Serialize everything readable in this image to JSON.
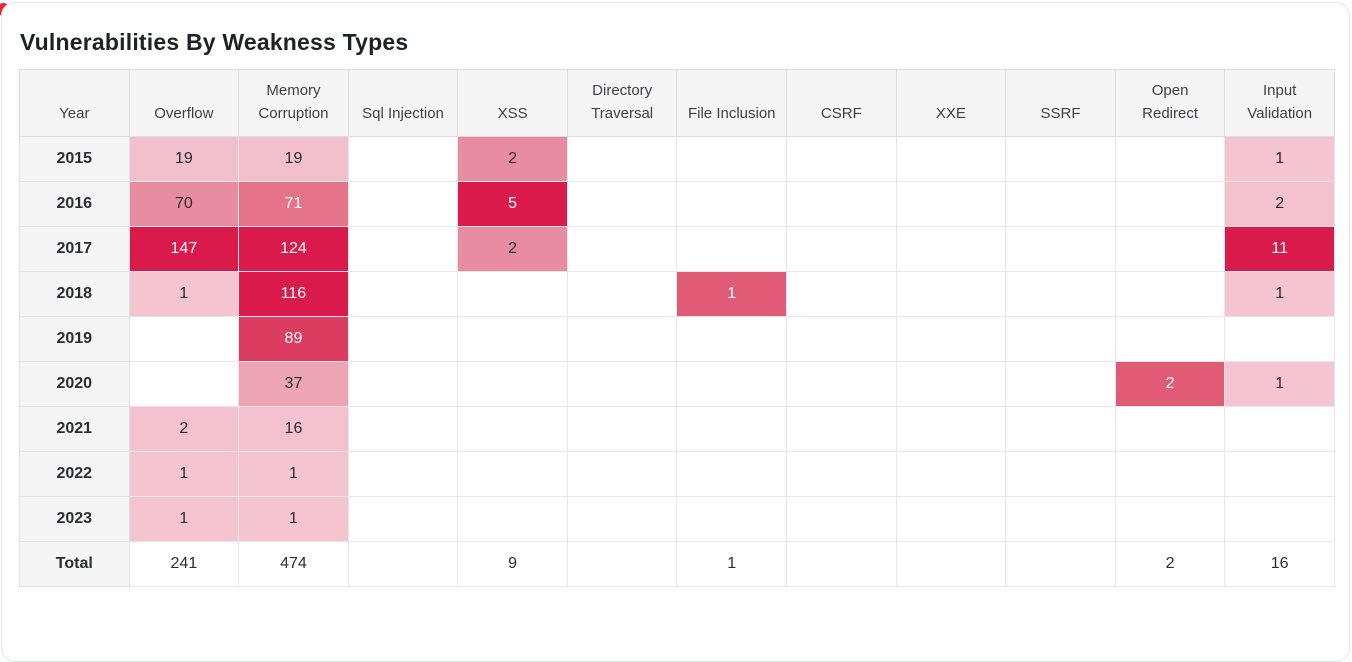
{
  "title": "Vulnerabilities By Weakness Types",
  "colors": {
    "heat_max": "#d91a4a",
    "heat_high": "#dc3c5f",
    "heat_medhigh": "#e5748b",
    "heat_mid": "#e15b76",
    "heat_medium": "#e88da1",
    "heat_medlight": "#eda5b4",
    "heat_light": "#f3c2ce",
    "heat_lightest": "#f4c5d0",
    "year_link": "#4459e6",
    "total_value_text": "#4c2440",
    "header_bg": "#f5f5f6",
    "corner_dot": "#e02d3c"
  },
  "table": {
    "year_header": "Year",
    "columns": [
      "Overflow",
      "Memory Corruption",
      "Sql Injection",
      "XSS",
      "Directory Traversal",
      "File Inclusion",
      "CSRF",
      "XXE",
      "SSRF",
      "Open Redirect",
      "Input Validation"
    ],
    "rows": [
      {
        "year": "2015",
        "cells": [
          {
            "v": "19",
            "bg": "#f2c0cc",
            "fg": "#2b2d31"
          },
          {
            "v": "19",
            "bg": "#f2c0cc",
            "fg": "#2b2d31"
          },
          {
            "v": ""
          },
          {
            "v": "2",
            "bg": "#e88da1",
            "fg": "#2b2d31"
          },
          {
            "v": ""
          },
          {
            "v": ""
          },
          {
            "v": ""
          },
          {
            "v": ""
          },
          {
            "v": ""
          },
          {
            "v": ""
          },
          {
            "v": "1",
            "bg": "#f4c5d0",
            "fg": "#2b2d31"
          }
        ]
      },
      {
        "year": "2016",
        "cells": [
          {
            "v": "70",
            "bg": "#e88da1",
            "fg": "#2b2d31"
          },
          {
            "v": "71",
            "bg": "#e5748b",
            "fg": "#ffffff"
          },
          {
            "v": ""
          },
          {
            "v": "5",
            "bg": "#d91a4a",
            "fg": "#ffffff"
          },
          {
            "v": ""
          },
          {
            "v": ""
          },
          {
            "v": ""
          },
          {
            "v": ""
          },
          {
            "v": ""
          },
          {
            "v": ""
          },
          {
            "v": "2",
            "bg": "#f3c2ce",
            "fg": "#2b2d31"
          }
        ]
      },
      {
        "year": "2017",
        "cells": [
          {
            "v": "147",
            "bg": "#d91a4a",
            "fg": "#ffffff"
          },
          {
            "v": "124",
            "bg": "#d91a4a",
            "fg": "#ffffff"
          },
          {
            "v": ""
          },
          {
            "v": "2",
            "bg": "#e88da1",
            "fg": "#2b2d31"
          },
          {
            "v": ""
          },
          {
            "v": ""
          },
          {
            "v": ""
          },
          {
            "v": ""
          },
          {
            "v": ""
          },
          {
            "v": ""
          },
          {
            "v": "11",
            "bg": "#d91a4a",
            "fg": "#ffffff"
          }
        ]
      },
      {
        "year": "2018",
        "cells": [
          {
            "v": "1",
            "bg": "#f4c5d0",
            "fg": "#2b2d31"
          },
          {
            "v": "116",
            "bg": "#d91a4a",
            "fg": "#ffffff"
          },
          {
            "v": ""
          },
          {
            "v": ""
          },
          {
            "v": ""
          },
          {
            "v": "1",
            "bg": "#e15b76",
            "fg": "#ffffff"
          },
          {
            "v": ""
          },
          {
            "v": ""
          },
          {
            "v": ""
          },
          {
            "v": ""
          },
          {
            "v": "1",
            "bg": "#f4c5d0",
            "fg": "#2b2d31"
          }
        ]
      },
      {
        "year": "2019",
        "cells": [
          {
            "v": ""
          },
          {
            "v": "89",
            "bg": "#dc3c5f",
            "fg": "#ffffff"
          },
          {
            "v": ""
          },
          {
            "v": ""
          },
          {
            "v": ""
          },
          {
            "v": ""
          },
          {
            "v": ""
          },
          {
            "v": ""
          },
          {
            "v": ""
          },
          {
            "v": ""
          },
          {
            "v": ""
          }
        ]
      },
      {
        "year": "2020",
        "cells": [
          {
            "v": ""
          },
          {
            "v": "37",
            "bg": "#eda5b4",
            "fg": "#2b2d31"
          },
          {
            "v": ""
          },
          {
            "v": ""
          },
          {
            "v": ""
          },
          {
            "v": ""
          },
          {
            "v": ""
          },
          {
            "v": ""
          },
          {
            "v": ""
          },
          {
            "v": "2",
            "bg": "#e15b76",
            "fg": "#ffffff"
          },
          {
            "v": "1",
            "bg": "#f4c5d0",
            "fg": "#2b2d31"
          }
        ]
      },
      {
        "year": "2021",
        "cells": [
          {
            "v": "2",
            "bg": "#f3c2ce",
            "fg": "#2b2d31"
          },
          {
            "v": "16",
            "bg": "#f3c2ce",
            "fg": "#2b2d31"
          },
          {
            "v": ""
          },
          {
            "v": ""
          },
          {
            "v": ""
          },
          {
            "v": ""
          },
          {
            "v": ""
          },
          {
            "v": ""
          },
          {
            "v": ""
          },
          {
            "v": ""
          },
          {
            "v": ""
          }
        ]
      },
      {
        "year": "2022",
        "cells": [
          {
            "v": "1",
            "bg": "#f4c5d0",
            "fg": "#2b2d31"
          },
          {
            "v": "1",
            "bg": "#f4c5d0",
            "fg": "#2b2d31"
          },
          {
            "v": ""
          },
          {
            "v": ""
          },
          {
            "v": ""
          },
          {
            "v": ""
          },
          {
            "v": ""
          },
          {
            "v": ""
          },
          {
            "v": ""
          },
          {
            "v": ""
          },
          {
            "v": ""
          }
        ]
      },
      {
        "year": "2023",
        "cells": [
          {
            "v": "1",
            "bg": "#f4c5d0",
            "fg": "#2b2d31"
          },
          {
            "v": "1",
            "bg": "#f4c5d0",
            "fg": "#2b2d31"
          },
          {
            "v": ""
          },
          {
            "v": ""
          },
          {
            "v": ""
          },
          {
            "v": ""
          },
          {
            "v": ""
          },
          {
            "v": ""
          },
          {
            "v": ""
          },
          {
            "v": ""
          },
          {
            "v": ""
          }
        ]
      }
    ],
    "total": {
      "label": "Total",
      "values": [
        "241",
        "474",
        "",
        "9",
        "",
        "1",
        "",
        "",
        "",
        "2",
        "16"
      ]
    }
  },
  "chart_data": {
    "type": "heatmap",
    "title": "Vulnerabilities By Weakness Types",
    "x_categories": [
      "Overflow",
      "Memory Corruption",
      "Sql Injection",
      "XSS",
      "Directory Traversal",
      "File Inclusion",
      "CSRF",
      "XXE",
      "SSRF",
      "Open Redirect",
      "Input Validation"
    ],
    "y_categories": [
      "2015",
      "2016",
      "2017",
      "2018",
      "2019",
      "2020",
      "2021",
      "2022",
      "2023"
    ],
    "values": [
      [
        19,
        19,
        null,
        2,
        null,
        null,
        null,
        null,
        null,
        null,
        1
      ],
      [
        70,
        71,
        null,
        5,
        null,
        null,
        null,
        null,
        null,
        null,
        2
      ],
      [
        147,
        124,
        null,
        2,
        null,
        null,
        null,
        null,
        null,
        null,
        11
      ],
      [
        1,
        116,
        null,
        null,
        null,
        1,
        null,
        null,
        null,
        null,
        1
      ],
      [
        null,
        89,
        null,
        null,
        null,
        null,
        null,
        null,
        null,
        null,
        null
      ],
      [
        null,
        37,
        null,
        null,
        null,
        null,
        null,
        null,
        null,
        2,
        1
      ],
      [
        2,
        16,
        null,
        null,
        null,
        null,
        null,
        null,
        null,
        null,
        null
      ],
      [
        1,
        1,
        null,
        null,
        null,
        null,
        null,
        null,
        null,
        null,
        null
      ],
      [
        1,
        1,
        null,
        null,
        null,
        null,
        null,
        null,
        null,
        null,
        null
      ]
    ],
    "totals": [
      241,
      474,
      null,
      9,
      null,
      1,
      null,
      null,
      null,
      2,
      16
    ],
    "color_scale": {
      "low": "#f4c5d0",
      "high": "#d91a4a"
    },
    "legend": "none",
    "grid": true
  }
}
